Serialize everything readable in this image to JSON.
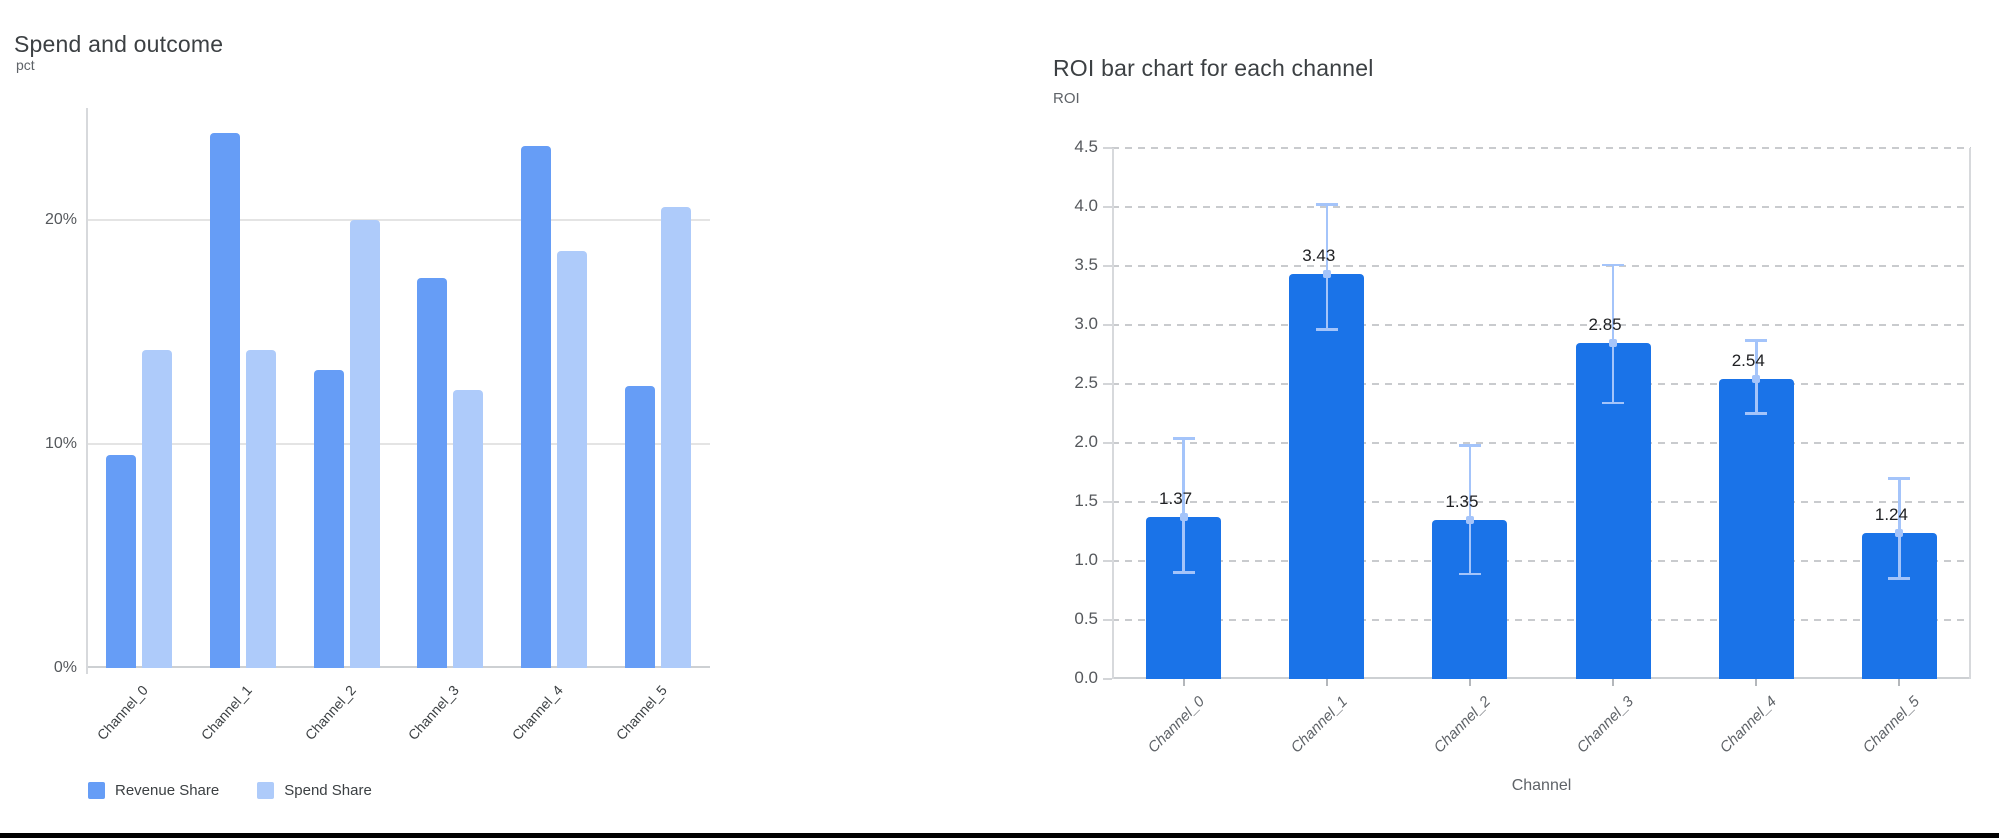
{
  "page": {
    "background_color": "#ffffff",
    "footer_bar_color": "#000000"
  },
  "chart_data": [
    {
      "type": "bar",
      "title": "Spend and outcome",
      "ylabel": "pct",
      "xlabel": "",
      "categories": [
        "Channel_0",
        "Channel_1",
        "Channel_2",
        "Channel_3",
        "Channel_4",
        "Channel_5"
      ],
      "series": [
        {
          "name": "Revenue Share",
          "color": "#669df6",
          "values": [
            9.5,
            23.9,
            13.3,
            17.4,
            23.3,
            12.6
          ]
        },
        {
          "name": "Spend Share",
          "color": "#aecbfa",
          "values": [
            14.2,
            14.2,
            20.0,
            12.4,
            18.6,
            20.6
          ]
        }
      ],
      "y_ticks": [
        {
          "v": 0,
          "label": "0%"
        },
        {
          "v": 10,
          "label": "10%"
        },
        {
          "v": 20,
          "label": "20%"
        }
      ],
      "ylim": [
        0,
        25
      ],
      "grid": "horizontal-solid",
      "legend_position": "bottom"
    },
    {
      "type": "bar",
      "title": "ROI bar chart for each channel",
      "ylabel": "ROI",
      "xlabel": "Channel",
      "categories": [
        "Channel_0",
        "Channel_1",
        "Channel_2",
        "Channel_3",
        "Channel_4",
        "Channel_5"
      ],
      "values": [
        1.37,
        3.43,
        1.35,
        2.85,
        2.54,
        1.24
      ],
      "value_labels": [
        "1.37",
        "3.43",
        "1.35",
        "2.85",
        "2.54",
        "1.24"
      ],
      "error_low": [
        0.89,
        2.95,
        0.88,
        2.33,
        2.24,
        0.84
      ],
      "error_high": [
        2.05,
        4.03,
        1.99,
        3.52,
        2.88,
        1.71
      ],
      "bar_color": "#1a73e8",
      "error_color": "#a4c4fa",
      "y_ticks": [
        {
          "v": 0.0,
          "label": "0.0"
        },
        {
          "v": 0.5,
          "label": "0.5"
        },
        {
          "v": 1.0,
          "label": "1.0"
        },
        {
          "v": 1.5,
          "label": "1.5"
        },
        {
          "v": 2.0,
          "label": "2.0"
        },
        {
          "v": 2.5,
          "label": "2.5"
        },
        {
          "v": 3.0,
          "label": "3.0"
        },
        {
          "v": 3.5,
          "label": "3.5"
        },
        {
          "v": 4.0,
          "label": "4.0"
        },
        {
          "v": 4.5,
          "label": "4.5"
        }
      ],
      "ylim": [
        0,
        4.5
      ],
      "grid": "horizontal-dashed",
      "legend_position": "none"
    }
  ]
}
